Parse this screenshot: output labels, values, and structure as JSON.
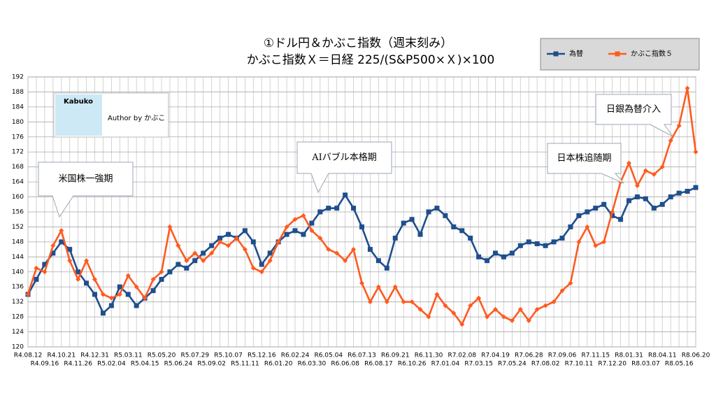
{
  "chart_data": {
    "type": "line",
    "title": "①ドル円＆かぶこ指数（週末刻み）",
    "subtitle": "かぶこ指数Ｘ＝日経 225/(S&P500×Ｘ)×100",
    "categories": [
      "R4.08.12",
      null,
      "R4.09.16",
      null,
      "R4.10.21",
      null,
      "R4.11.26",
      null,
      "R4.12.31",
      null,
      "R5.02.04",
      null,
      "R5.03.11",
      null,
      "R5.04.15",
      null,
      "R5.05.20",
      null,
      "R5.06.24",
      null,
      "R5.07.29",
      null,
      "R5.09.02",
      null,
      "R5.10.07",
      null,
      "R5.11.11",
      null,
      "R5.12.16",
      null,
      "R6.01.20",
      null,
      "R6.02.24",
      null,
      "R6.03.30",
      null,
      "R6.05.04",
      null,
      "R6.06.08",
      null,
      "R6.07.13",
      null,
      "R6.08.17",
      null,
      "R6.09.21",
      null,
      "R6.10.26",
      null,
      "R6.11.30",
      null,
      "R7.01.04",
      null,
      "R7.02.08",
      null,
      "R7.03.15",
      null,
      "R7.04.19",
      null,
      "R7.05.24",
      null,
      "R7.06.28",
      null,
      "R7.08.02",
      null,
      "R7.09.06",
      null,
      "R7.10.11",
      null,
      "R7.11.15",
      null,
      "R7.12.20",
      null,
      "R8.01.31",
      null,
      "R8.03.07",
      null,
      "R8.04.11",
      null,
      "R8.05.16",
      null,
      "R8.06.20"
    ],
    "series": [
      {
        "name": "為替",
        "color": "#1f4e8c",
        "marker": "square",
        "values": [
          134,
          138,
          142,
          145,
          148,
          146,
          140,
          137,
          134,
          129,
          131,
          136,
          134,
          131,
          133,
          135,
          138,
          140,
          142,
          141,
          143,
          145,
          147,
          149,
          150,
          149,
          151,
          148,
          142,
          145,
          148,
          150,
          151,
          150,
          153,
          156,
          157,
          157,
          160.5,
          157,
          152,
          146,
          143,
          141,
          149,
          153,
          154,
          150,
          156,
          157,
          155,
          152,
          151,
          149,
          144,
          143,
          145,
          144,
          145,
          147,
          148,
          147.5,
          147,
          148,
          149,
          152,
          155,
          156,
          157,
          158,
          155,
          154,
          159,
          160,
          159.5,
          157,
          158,
          160,
          161,
          161.5,
          162.5
        ]
      },
      {
        "name": "かぶこ指数５",
        "color": "#ff5a1f",
        "marker": "diamond",
        "values": [
          134,
          141,
          140,
          147,
          151,
          143,
          138,
          143,
          138,
          134,
          133,
          134,
          139,
          136,
          133,
          138,
          140,
          152,
          147,
          143,
          145,
          143,
          145,
          148,
          147,
          149,
          146,
          141,
          140,
          143,
          148,
          152,
          154,
          155,
          151,
          149,
          146,
          145,
          143,
          146,
          137,
          132,
          136,
          132,
          136,
          132,
          132,
          130,
          128,
          134,
          131,
          129,
          126,
          131,
          133,
          128,
          130,
          128,
          127,
          130,
          127,
          130,
          131,
          132,
          135,
          137,
          148,
          152,
          147,
          148,
          156,
          164,
          169,
          163,
          167,
          166,
          168,
          175,
          179,
          189,
          172
        ]
      }
    ],
    "ylim": [
      120,
      192
    ],
    "yticks": [
      120,
      124,
      128,
      132,
      136,
      140,
      144,
      148,
      152,
      156,
      160,
      164,
      168,
      172,
      176,
      180,
      184,
      188,
      192
    ],
    "grid": true,
    "legend": "top-right",
    "annotations": [
      "米国株一強期",
      "AIバブル本格期",
      "日本株追随期",
      "日銀為替介入"
    ],
    "logo_text": "Kabuko",
    "author": "Author by かぶこ"
  }
}
